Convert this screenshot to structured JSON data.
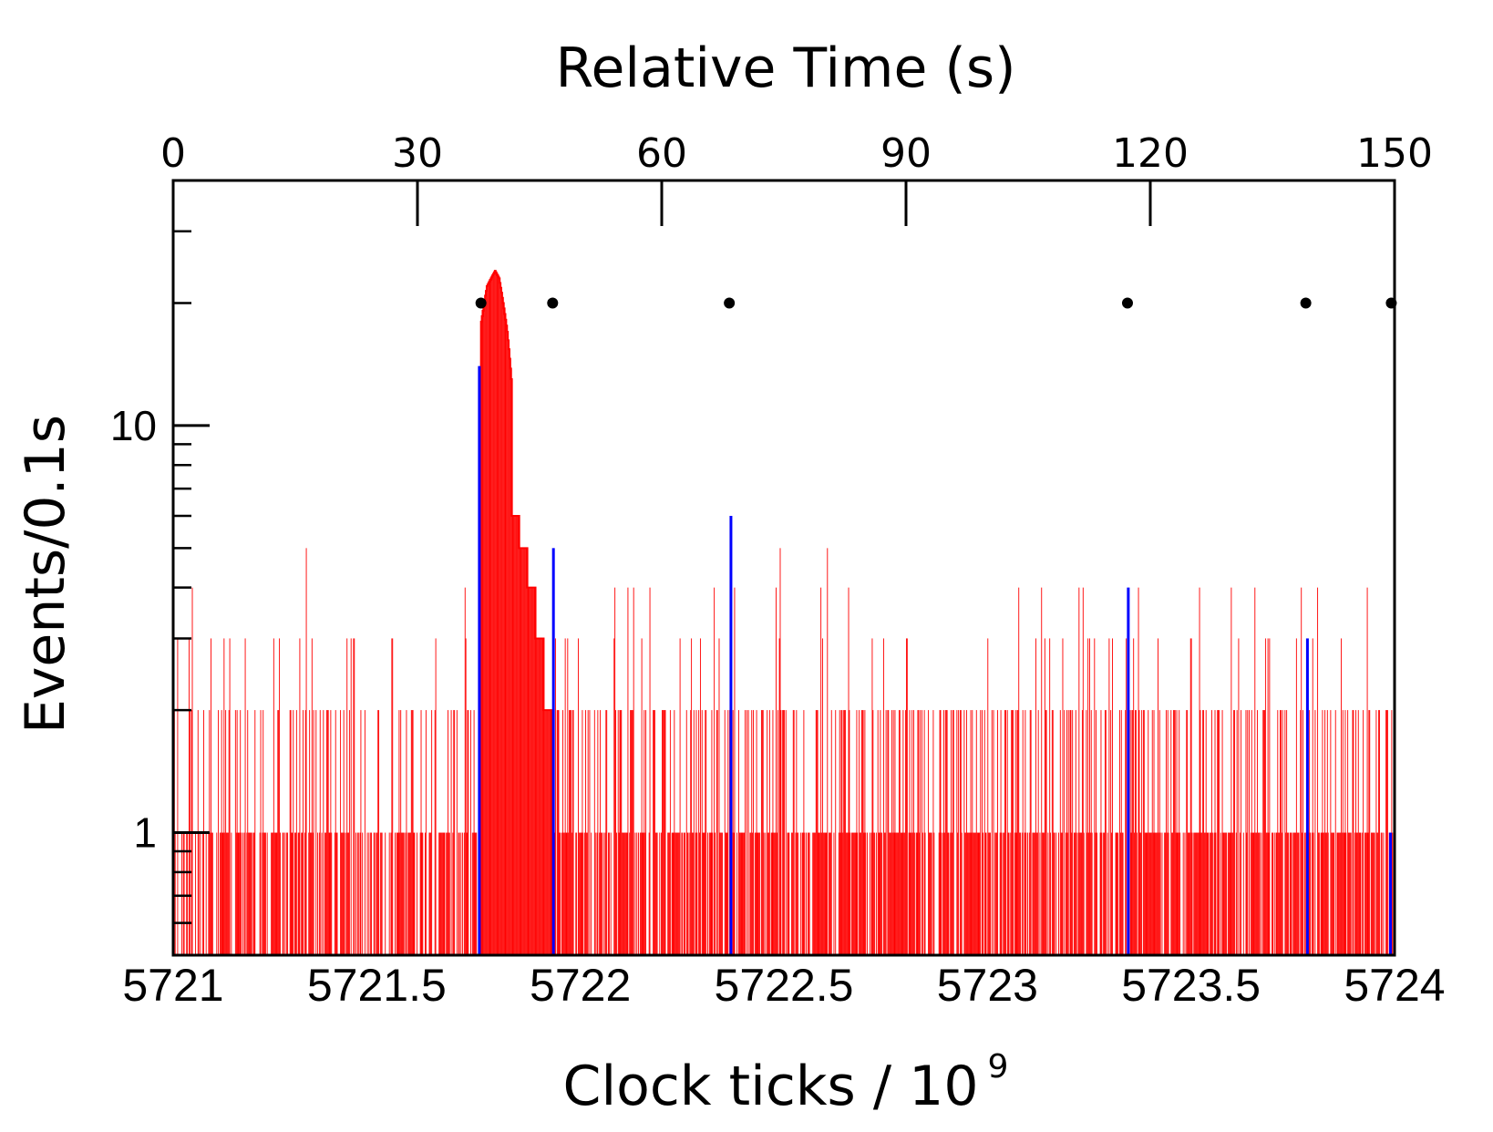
{
  "chart_data": {
    "type": "histogram",
    "title": "",
    "top_axis": {
      "label": "Relative Time (s)",
      "range": [
        0,
        150
      ],
      "ticks": [
        0,
        30,
        60,
        90,
        120,
        150
      ],
      "tick_labels": [
        "0",
        "30",
        "60",
        "90",
        "120",
        "150"
      ]
    },
    "xlabel": "Clock ticks / 10",
    "xlabel_superscript": "9",
    "xlim": [
      5721,
      5724
    ],
    "x_ticks": [
      5721,
      5721.5,
      5722,
      5722.5,
      5723,
      5723.5,
      5724
    ],
    "x_tick_labels": [
      "5721",
      "5721.5",
      "5722",
      "5722.5",
      "5723",
      "5723.5",
      "5724"
    ],
    "ylabel": "Events/0.1s",
    "yscale": "log",
    "ylim": [
      0.5,
      40
    ],
    "y_ticks": [
      1,
      10
    ],
    "y_tick_labels": [
      "1",
      "10"
    ],
    "bin_width_s": 0.1,
    "colors": {
      "background_events": "#ff0000",
      "blue_events": "#0000ff",
      "markers": "#000000",
      "axis": "#000000"
    },
    "series": [
      {
        "name": "background events",
        "color": "#ff0000",
        "segments": [
          {
            "t": [
              0,
              37.5
            ],
            "density": 0.6,
            "max": 5,
            "pattern": "noise"
          },
          {
            "t": [
              40.5,
              46.5
            ],
            "values": [
              10,
              6,
              5,
              4,
              3,
              2
            ]
          },
          {
            "t": [
              46.5,
              150
            ],
            "density": 0.75,
            "max": 5,
            "pattern": "noise"
          }
        ],
        "spikes": [
          {
            "t": 16.3,
            "value": 5
          },
          {
            "t": 56.5,
            "value": 4
          },
          {
            "t": 74.5,
            "value": 5
          },
          {
            "t": 80.3,
            "value": 5
          },
          {
            "t": 111.2,
            "value": 4
          },
          {
            "t": 118.5,
            "value": 4
          },
          {
            "t": 140.5,
            "value": 4
          }
        ]
      },
      {
        "name": "burst peak",
        "color": "#ff0000",
        "peak_time_s": 39.5,
        "peak_value": 24,
        "values_by_s": {
          "37.8": 18,
          "38.5": 22,
          "39.0": 23,
          "39.5": 24,
          "40.0": 23,
          "40.5": 20,
          "41.0": 17,
          "41.5": 13
        }
      },
      {
        "name": "blue events",
        "color": "#0000ff",
        "spikes": [
          {
            "t": 37.6,
            "value": 14
          },
          {
            "t": 46.7,
            "value": 5
          },
          {
            "t": 68.5,
            "value": 6
          },
          {
            "t": 117.3,
            "value": 4
          },
          {
            "t": 139.3,
            "value": 3
          },
          {
            "t": 149.5,
            "value": 1
          }
        ]
      },
      {
        "name": "markers",
        "color": "#000000",
        "type": "points",
        "y": 20,
        "t": [
          37.8,
          46.6,
          68.3,
          117.2,
          139.1,
          149.6
        ]
      }
    ]
  }
}
